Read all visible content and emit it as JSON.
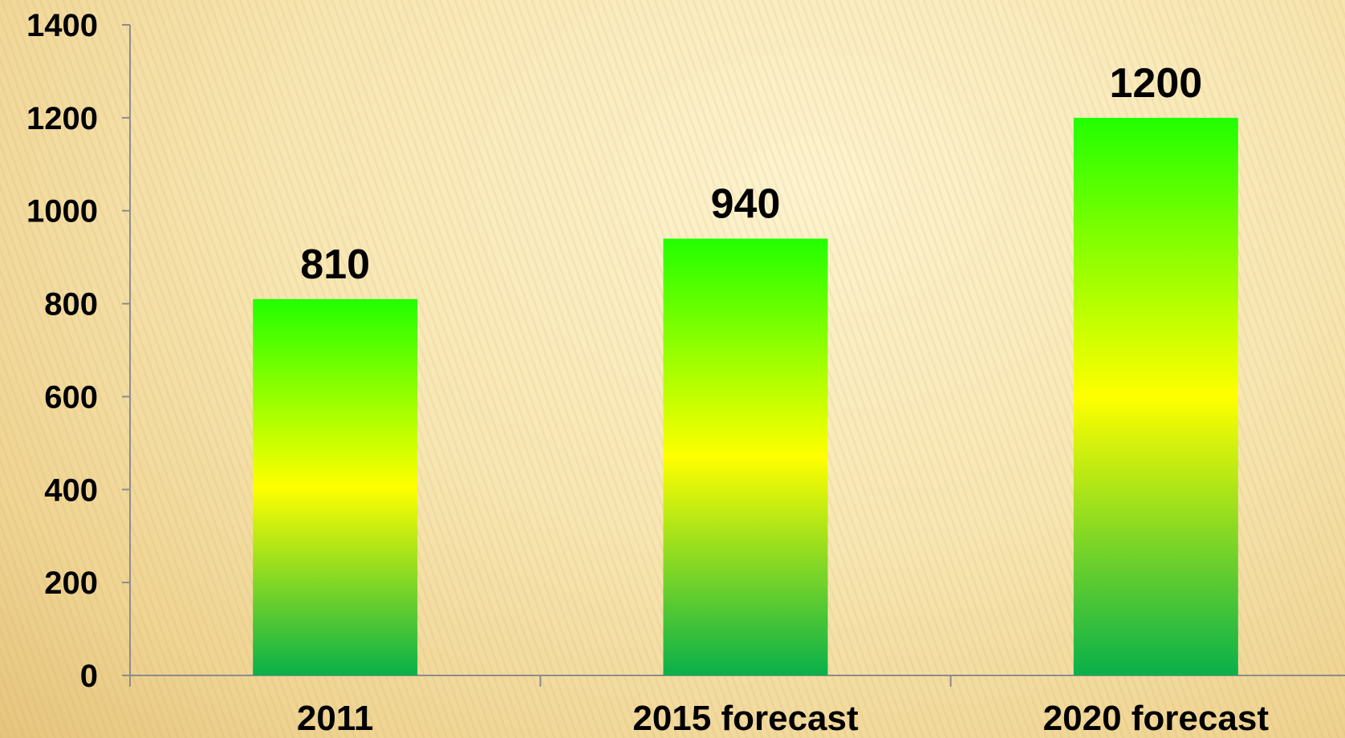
{
  "chart_data": {
    "type": "bar",
    "categories": [
      "2011",
      "2015 forecast",
      "2020 forecast"
    ],
    "values": [
      810,
      940,
      1200
    ],
    "data_labels": [
      "810",
      "940",
      "1200"
    ],
    "ylim": [
      0,
      1400
    ],
    "yticks": [
      "0",
      "200",
      "400",
      "600",
      "800",
      "1000",
      "1200",
      "1400"
    ],
    "title": "",
    "xlabel": "",
    "ylabel": "",
    "grid": false,
    "bar_gradient": [
      "#08b04a",
      "#ffff00",
      "#22ff00"
    ]
  }
}
